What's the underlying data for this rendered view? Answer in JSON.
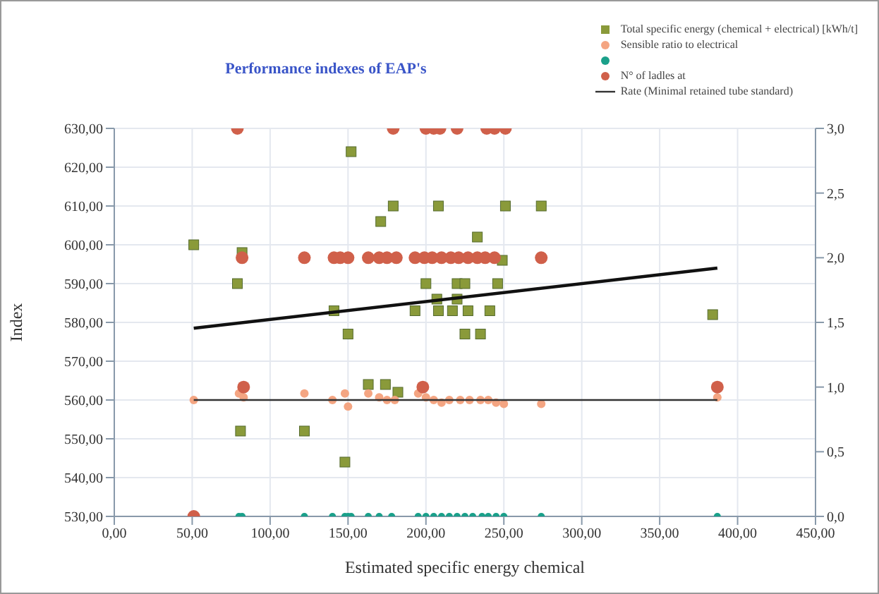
{
  "chart_data": {
    "type": "scatter",
    "title": "Performance indexes of EAP's",
    "xlabel": "Estimated specific energy chemical",
    "ylabel": "Index",
    "legend": "top right",
    "grid": true,
    "xlim": [
      0,
      450
    ],
    "xticks": [
      {
        "value": 0,
        "label": "0,00"
      },
      {
        "value": 50,
        "label": "50,00"
      },
      {
        "value": 100,
        "label": "100,00"
      },
      {
        "value": 150,
        "label": "150,00"
      },
      {
        "value": 200,
        "label": "200,00"
      },
      {
        "value": 250,
        "label": "250,00"
      },
      {
        "value": 300,
        "label": "300,00"
      },
      {
        "value": 350,
        "label": "350,00"
      },
      {
        "value": 400,
        "label": "400,00"
      },
      {
        "value": 450,
        "label": "450,00"
      }
    ],
    "ylim": [
      530,
      630
    ],
    "yticks": [
      {
        "value": 530,
        "label": "530,00"
      },
      {
        "value": 540,
        "label": "540,00"
      },
      {
        "value": 550,
        "label": "550,00"
      },
      {
        "value": 560,
        "label": "560,00"
      },
      {
        "value": 570,
        "label": "570,00"
      },
      {
        "value": 580,
        "label": "580,00"
      },
      {
        "value": 590,
        "label": "590,00"
      },
      {
        "value": 600,
        "label": "600,00"
      },
      {
        "value": 610,
        "label": "610,00"
      },
      {
        "value": 620,
        "label": "620,00"
      },
      {
        "value": 630,
        "label": "630,00"
      }
    ],
    "y2lim": [
      0,
      3
    ],
    "y2ticks": [
      {
        "value": 0,
        "label": "0,0"
      },
      {
        "value": 0.5,
        "label": "0,5"
      },
      {
        "value": 1,
        "label": "1,0"
      },
      {
        "value": 1.5,
        "label": "1,5"
      },
      {
        "value": 2,
        "label": "2,0"
      },
      {
        "value": 2.5,
        "label": "2,5"
      },
      {
        "value": 3,
        "label": "3,0"
      }
    ],
    "series": [
      {
        "name": "Total specific energy (chemical + electrical) [kWh/t]",
        "marker": "square",
        "color": "#8a9a3a",
        "x": [
          51,
          82,
          79,
          152,
          171,
          179,
          208,
          200,
          233,
          251,
          274,
          220,
          225,
          246,
          207,
          220,
          249,
          193,
          208,
          217,
          227,
          241,
          384,
          141,
          150,
          225,
          235,
          163,
          174,
          182,
          122,
          148,
          81
        ],
        "values": [
          600,
          598,
          590,
          624,
          606,
          610,
          610,
          590,
          602,
          610,
          610,
          590,
          590,
          590,
          586,
          586,
          596,
          583,
          583,
          583,
          583,
          583,
          582,
          583,
          577,
          577,
          577,
          564,
          564,
          562,
          552,
          544,
          552
        ]
      },
      {
        "name": "Sensible ratio to electrical",
        "marker": "circle",
        "axis": "y2",
        "color": "#f4a582",
        "x": [
          51,
          80,
          83,
          122,
          140,
          148,
          150,
          163,
          170,
          175,
          180,
          195,
          200,
          205,
          210,
          215,
          222,
          228,
          235,
          240,
          245,
          250,
          274,
          387
        ],
        "values": [
          0.9,
          0.95,
          0.92,
          0.95,
          0.9,
          0.95,
          0.85,
          0.95,
          0.92,
          0.9,
          0.9,
          0.95,
          0.92,
          0.9,
          0.88,
          0.9,
          0.9,
          0.9,
          0.9,
          0.9,
          0.88,
          0.87,
          0.87,
          0.92
        ]
      },
      {
        "marker": "circle",
        "axis": "y2",
        "color": "#1aa08a",
        "x": [
          80,
          82,
          122,
          140,
          148,
          150,
          152,
          163,
          170,
          178,
          195,
          200,
          205,
          210,
          215,
          220,
          225,
          230,
          236,
          240,
          245,
          250,
          274,
          387
        ],
        "values": [
          0,
          0,
          0,
          0,
          0,
          0,
          0,
          0,
          0,
          0,
          0,
          0,
          0,
          0,
          0,
          0,
          0,
          0,
          0,
          0,
          0,
          0,
          0,
          0
        ]
      },
      {
        "name": "N° of ladles at",
        "marker": "circle",
        "axis": "y2",
        "color": "#d0604a",
        "x": [
          79,
          179,
          200,
          205,
          209,
          220,
          239,
          244,
          251,
          82,
          122,
          141,
          145,
          150,
          163,
          170,
          175,
          181,
          193,
          199,
          204,
          210,
          216,
          221,
          227,
          233,
          238,
          244,
          274,
          83,
          198,
          387,
          51
        ],
        "values": [
          3,
          3,
          3,
          3,
          3,
          3,
          3,
          3,
          3,
          2,
          2,
          2,
          2,
          2,
          2,
          2,
          2,
          2,
          2,
          2,
          2,
          2,
          2,
          2,
          2,
          2,
          2,
          2,
          2,
          1,
          1,
          1,
          0
        ]
      },
      {
        "type": "line",
        "marker": "none",
        "line_style": "solid",
        "color": "#111111",
        "x": [
          51,
          387
        ],
        "values": [
          578.5,
          594
        ]
      },
      {
        "name": "Rate (Minimal retained tube standard)",
        "type": "line",
        "marker": "none",
        "line_style": "solid",
        "axis": "y2",
        "color": "#333333",
        "x": [
          51,
          387
        ],
        "values": [
          0.9,
          0.9
        ]
      }
    ]
  }
}
